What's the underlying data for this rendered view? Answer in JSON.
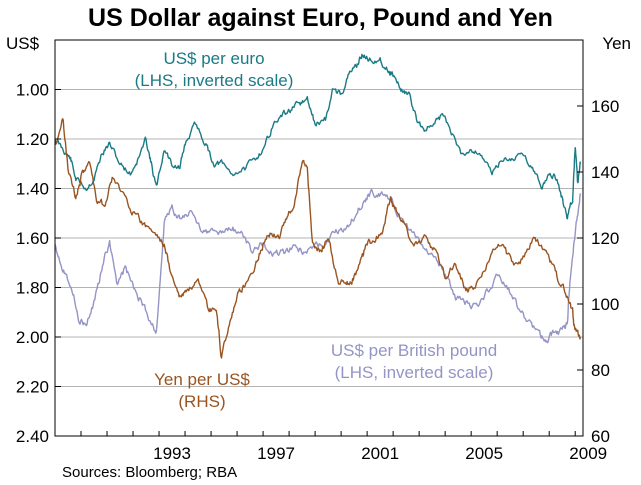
{
  "title": "US Dollar against Euro, Pound and Yen",
  "left_unit": "US$",
  "right_unit": "Yen",
  "source": "Sources: Bloomberg; RBA",
  "colors": {
    "euro": "#1a7a85",
    "pound": "#9494c6",
    "yen": "#9a5420",
    "grid": "#b3b3b3",
    "frame": "#000000"
  },
  "chart_data": {
    "type": "line",
    "title": "US Dollar against Euro, Pound and Yen",
    "x_range": [
      1989.0,
      2009.3
    ],
    "x_ticks": [
      "1993",
      "1997",
      "2001",
      "2005",
      "2009"
    ],
    "left_axis": {
      "label": "US$",
      "inverted": true,
      "range": [
        0.8,
        2.4
      ],
      "ticks": [
        "1.00",
        "1.20",
        "1.40",
        "1.60",
        "1.80",
        "2.00",
        "2.20",
        "2.40"
      ],
      "tick_values": [
        1.0,
        1.2,
        1.4,
        1.6,
        1.8,
        2.0,
        2.2,
        2.4
      ]
    },
    "right_axis": {
      "label": "Yen",
      "range": [
        60,
        180
      ],
      "ticks": [
        "60",
        "80",
        "100",
        "120",
        "140",
        "160"
      ],
      "tick_values": [
        60,
        80,
        100,
        120,
        140,
        160
      ]
    },
    "grid": true,
    "annotations": [
      {
        "series": "euro",
        "lines": [
          "US$ per euro",
          "(LHS, inverted scale)"
        ]
      },
      {
        "series": "yen",
        "lines": [
          "Yen per US$",
          "(RHS)"
        ]
      },
      {
        "series": "pound",
        "lines": [
          "US$ per British pound",
          "(LHS, inverted scale)"
        ]
      }
    ],
    "series": [
      {
        "name": "US$ per euro",
        "axis": "left",
        "x": [
          1989.0,
          1989.3,
          1989.6,
          1989.8,
          1990.2,
          1990.5,
          1990.8,
          1991.1,
          1991.5,
          1991.9,
          1992.2,
          1992.5,
          1992.7,
          1992.9,
          1993.2,
          1993.5,
          1993.8,
          1994.0,
          1994.4,
          1994.8,
          1995.1,
          1995.4,
          1995.8,
          1996.3,
          1996.7,
          1997.0,
          1997.4,
          1997.8,
          1998.1,
          1998.4,
          1998.7,
          1999.0,
          1999.4,
          1999.7,
          2000.0,
          2000.3,
          2000.6,
          2000.8,
          2001.1,
          2001.5,
          2001.8,
          2002.0,
          2002.3,
          2002.6,
          2002.9,
          2003.2,
          2003.6,
          2003.9,
          2004.2,
          2004.6,
          2005.0,
          2005.4,
          2005.8,
          2006.2,
          2006.6,
          2007.0,
          2007.4,
          2007.7,
          2008.0,
          2008.3,
          2008.5,
          2008.7,
          2008.9,
          2009.0,
          2009.1,
          2009.2
        ],
        "y": [
          1.2,
          1.24,
          1.28,
          1.36,
          1.4,
          1.36,
          1.26,
          1.22,
          1.3,
          1.34,
          1.28,
          1.2,
          1.3,
          1.4,
          1.24,
          1.3,
          1.32,
          1.22,
          1.14,
          1.22,
          1.3,
          1.3,
          1.34,
          1.32,
          1.28,
          1.24,
          1.14,
          1.1,
          1.08,
          1.06,
          1.04,
          1.14,
          1.12,
          1.0,
          1.02,
          0.94,
          0.9,
          0.86,
          0.88,
          0.88,
          0.92,
          0.94,
          1.0,
          1.02,
          1.12,
          1.16,
          1.14,
          1.1,
          1.16,
          1.26,
          1.24,
          1.26,
          1.34,
          1.28,
          1.28,
          1.26,
          1.32,
          1.4,
          1.34,
          1.36,
          1.44,
          1.52,
          1.44,
          1.24,
          1.38,
          1.3
        ]
      },
      {
        "name": "Yen per US$",
        "axis": "right",
        "x": [
          1989.0,
          1989.3,
          1989.5,
          1989.8,
          1990.0,
          1990.3,
          1990.6,
          1990.9,
          1991.2,
          1991.6,
          1992.0,
          1992.4,
          1992.8,
          1993.2,
          1993.5,
          1993.8,
          1994.1,
          1994.5,
          1994.9,
          1995.2,
          1995.4,
          1995.7,
          1996.0,
          1996.3,
          1996.7,
          1997.0,
          1997.3,
          1997.6,
          1997.9,
          1998.2,
          1998.5,
          1998.7,
          1998.9,
          1999.2,
          1999.5,
          1999.9,
          2000.2,
          2000.5,
          2000.8,
          2001.0,
          2001.3,
          2001.6,
          2001.9,
          2002.1,
          2002.4,
          2002.8,
          2003.2,
          2003.6,
          2004.0,
          2004.4,
          2004.8,
          2005.0,
          2005.4,
          2005.8,
          2006.2,
          2006.6,
          2007.0,
          2007.4,
          2007.7,
          2008.0,
          2008.3,
          2008.6,
          2008.9,
          2009.0,
          2009.2
        ],
        "y": [
          148,
          156,
          142,
          132,
          138,
          144,
          132,
          130,
          138,
          134,
          128,
          124,
          122,
          118,
          108,
          102,
          104,
          106,
          98,
          98,
          84,
          94,
          102,
          106,
          112,
          118,
          122,
          120,
          126,
          130,
          144,
          140,
          118,
          116,
          120,
          106,
          106,
          108,
          114,
          118,
          120,
          122,
          132,
          128,
          124,
          118,
          120,
          116,
          108,
          112,
          104,
          104,
          108,
          116,
          118,
          112,
          114,
          120,
          118,
          114,
          108,
          104,
          98,
          92,
          90
        ]
      },
      {
        "name": "US$ per British pound",
        "axis": "left",
        "x": [
          1989.0,
          1989.3,
          1989.6,
          1989.9,
          1990.2,
          1990.5,
          1990.8,
          1991.1,
          1991.4,
          1991.7,
          1992.0,
          1992.3,
          1992.6,
          1992.9,
          1993.2,
          1993.5,
          1993.8,
          1994.2,
          1994.6,
          1995.0,
          1995.4,
          1995.8,
          1996.2,
          1996.6,
          1997.0,
          1997.4,
          1997.8,
          1998.2,
          1998.6,
          1999.0,
          1999.4,
          1999.8,
          2000.2,
          2000.6,
          2000.9,
          2001.2,
          2001.6,
          2002.0,
          2002.4,
          2002.8,
          2003.2,
          2003.6,
          2004.0,
          2004.4,
          2004.8,
          2005.2,
          2005.6,
          2006.0,
          2006.4,
          2006.8,
          2007.2,
          2007.6,
          2007.9,
          2008.2,
          2008.5,
          2008.7,
          2008.8,
          2009.0,
          2009.2
        ],
        "y": [
          1.62,
          1.72,
          1.78,
          1.92,
          1.96,
          1.86,
          1.72,
          1.62,
          1.78,
          1.72,
          1.8,
          1.86,
          1.92,
          1.98,
          1.54,
          1.48,
          1.52,
          1.5,
          1.56,
          1.58,
          1.58,
          1.56,
          1.58,
          1.66,
          1.62,
          1.66,
          1.66,
          1.64,
          1.66,
          1.64,
          1.62,
          1.58,
          1.56,
          1.5,
          1.44,
          1.42,
          1.42,
          1.46,
          1.54,
          1.58,
          1.64,
          1.68,
          1.74,
          1.84,
          1.86,
          1.88,
          1.82,
          1.76,
          1.8,
          1.88,
          1.94,
          1.98,
          2.02,
          1.98,
          1.98,
          1.94,
          1.76,
          1.58,
          1.42
        ]
      }
    ]
  }
}
